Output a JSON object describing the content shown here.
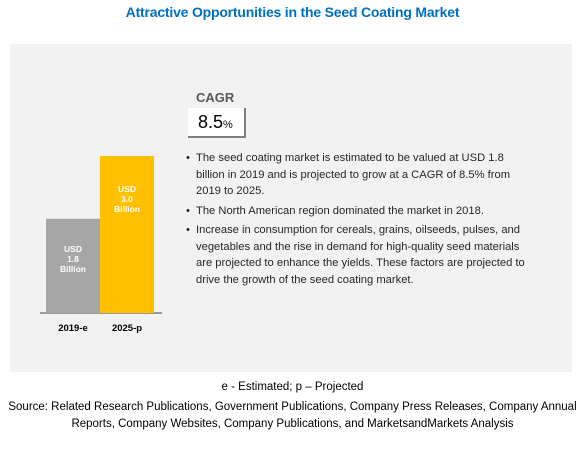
{
  "title": "Attractive Opportunities in the Seed Coating Market",
  "cagr": {
    "label": "CAGR",
    "value": "8.5",
    "unit": "%"
  },
  "bullets": [
    "The seed coating market is estimated to be valued at USD 1.8 billion in 2019 and is projected to grow at a CAGR of 8.5% from 2019 to 2025.",
    "The North American region dominated the market in 2018.",
    "Increase in consumption for cereals, grains, oilseeds, pulses, and vegetables and the rise in demand for high-quality seed materials are projected to enhance the yields. These factors are projected to drive the growth of the seed coating market."
  ],
  "footnote": "e - Estimated; p – Projected",
  "source": "Source: Related Research Publications, Government Publications, Company Press Releases, Company Annual Reports, Company Websites, Company Publications, and MarketsandMarkets Analysis",
  "colors": {
    "title": "#0070c0",
    "bar_2019": "#a6a6a6",
    "bar_2025": "#ffc000"
  },
  "chart_data": {
    "type": "bar",
    "categories": [
      "2019-e",
      "2025-p"
    ],
    "values": [
      1.8,
      3.0
    ],
    "data_labels": [
      [
        "USD",
        "1.8",
        "Billion"
      ],
      [
        "USD",
        "3.0",
        "Billion"
      ]
    ],
    "colors": [
      "#a6a6a6",
      "#ffc000"
    ],
    "ylim": [
      0,
      3.0
    ],
    "grid": false,
    "legend": "none"
  }
}
